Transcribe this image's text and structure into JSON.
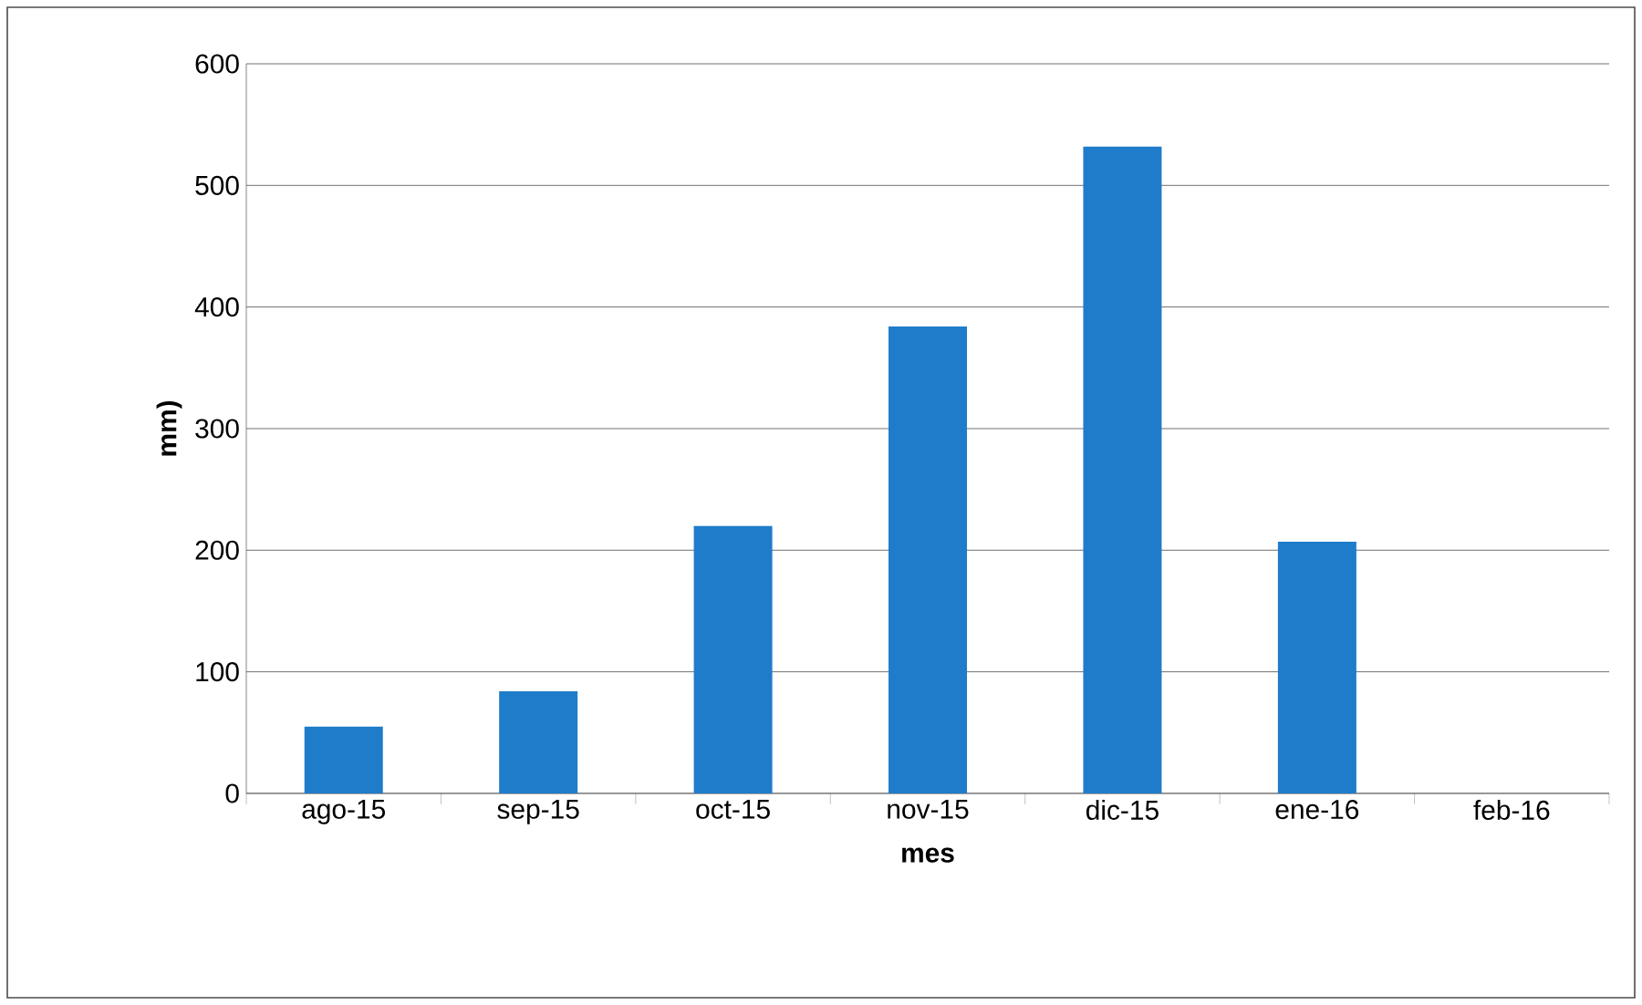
{
  "chart_data": {
    "type": "bar",
    "xlabel": "mes",
    "ylabel": "mm)",
    "categories": [
      "ago-15",
      "sep-15",
      "oct-15",
      "nov-15",
      "dic-15",
      "ene-16",
      "feb-16"
    ],
    "values": [
      55,
      84,
      220,
      384,
      532,
      207,
      0
    ],
    "color": "#1f7cca",
    "ylim": [
      0,
      600
    ],
    "yticks": [
      0,
      100,
      200,
      300,
      400,
      500,
      600
    ],
    "grid": "y"
  }
}
